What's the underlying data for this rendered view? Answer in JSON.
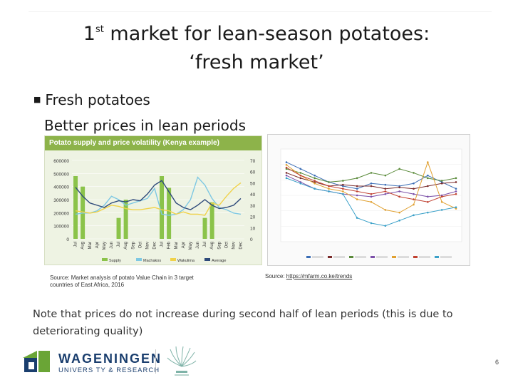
{
  "slide": {
    "title_prefix": "1",
    "title_sup": "st",
    "title_rest": " market for lean-season potatoes:",
    "title_line2": "‘fresh market’",
    "bullet": "Fresh potatoes",
    "subline": "Better prices in lean periods",
    "source_left": "Source: Market analysis of potato Value Chain in 3 target countries of East Africa, 2016",
    "source_right_prefix": "Source: ",
    "source_right_link": "https://mfarm.co.ke/trends",
    "note": "Note that prices do not increase during second half of lean periods (this is due to deteriorating quality)",
    "page_number": "6",
    "logo_line1": "WAGENINGEN",
    "logo_line2": "UNIVERS TY & RESEARCH"
  },
  "colors": {
    "supply": "#8bc34a",
    "machakos": "#7ec8e3",
    "wakulima": "#f0d24a",
    "average": "#2e4a7a",
    "header_green": "#8db34a",
    "logo_blue": "#1a3e6e",
    "logo_green": "#6aa536"
  },
  "chart_data": [
    {
      "type": "bar",
      "title": "Potato supply and price volatility (Kenya example)",
      "categories": [
        "Jul",
        "Aug",
        "Mar",
        "Apr",
        "May",
        "Jun",
        "Jul",
        "Aug",
        "Sep",
        "Oct",
        "Nov",
        "Dec",
        "Jul",
        "Feb",
        "Mar",
        "Apr",
        "May",
        "Jun",
        "Jul",
        "Aug",
        "Sep",
        "Oct",
        "Nov",
        "Dec"
      ],
      "ylim": [
        0,
        600000
      ],
      "y_ticks": [
        "600000",
        "500000",
        "400000",
        "300000",
        "200000",
        "100000",
        "0"
      ],
      "y2lim": [
        0,
        70
      ],
      "y2_ticks": [
        "70",
        "60",
        "50",
        "40",
        "30",
        "20",
        "10",
        "0"
      ],
      "series": [
        {
          "name": "Supply",
          "axis": "left",
          "kind": "bar",
          "values": [
            480000,
            400000,
            0,
            0,
            0,
            0,
            160000,
            300000,
            0,
            0,
            0,
            0,
            480000,
            390000,
            0,
            0,
            0,
            0,
            160000,
            280000,
            0,
            0,
            0,
            0
          ]
        },
        {
          "name": "Machakos",
          "axis": "right",
          "kind": "line",
          "values": [
            22,
            23,
            23,
            25,
            30,
            38,
            35,
            30,
            32,
            34,
            36,
            45,
            22,
            21,
            22,
            26,
            35,
            55,
            48,
            36,
            28,
            26,
            23,
            22
          ]
        },
        {
          "name": "Wakulima",
          "axis": "right",
          "kind": "line",
          "values": [
            25,
            24,
            23,
            24,
            27,
            30,
            29,
            27,
            26,
            26,
            27,
            28,
            26,
            25,
            22,
            24,
            22,
            22,
            21,
            32,
            30,
            38,
            45,
            50
          ]
        },
        {
          "name": "Average",
          "axis": "right",
          "kind": "line",
          "values": [
            46,
            38,
            32,
            30,
            28,
            32,
            34,
            33,
            35,
            34,
            40,
            48,
            52,
            42,
            32,
            28,
            26,
            30,
            35,
            30,
            27,
            28,
            30,
            36
          ]
        }
      ]
    },
    {
      "type": "line",
      "title": "",
      "series": [
        {
          "values": [
            60,
            55,
            50,
            45,
            42,
            40,
            44,
            43,
            42,
            44,
            50,
            45,
            40
          ]
        },
        {
          "values": [
            52,
            48,
            45,
            42,
            43,
            42,
            42,
            40,
            41,
            40,
            42,
            44,
            45
          ]
        },
        {
          "values": [
            55,
            52,
            48,
            45,
            46,
            48,
            52,
            50,
            55,
            52,
            48,
            46,
            48
          ]
        },
        {
          "values": [
            50,
            45,
            40,
            38,
            36,
            35,
            34,
            36,
            38,
            36,
            34,
            35,
            38
          ]
        },
        {
          "values": [
            58,
            50,
            44,
            40,
            38,
            32,
            30,
            24,
            22,
            28,
            60,
            30,
            25
          ]
        },
        {
          "values": [
            56,
            50,
            46,
            42,
            40,
            38,
            36,
            38,
            34,
            32,
            30,
            34,
            36
          ]
        },
        {
          "values": [
            48,
            44,
            40,
            38,
            36,
            18,
            14,
            12,
            16,
            20,
            22,
            24,
            26
          ]
        }
      ]
    }
  ]
}
